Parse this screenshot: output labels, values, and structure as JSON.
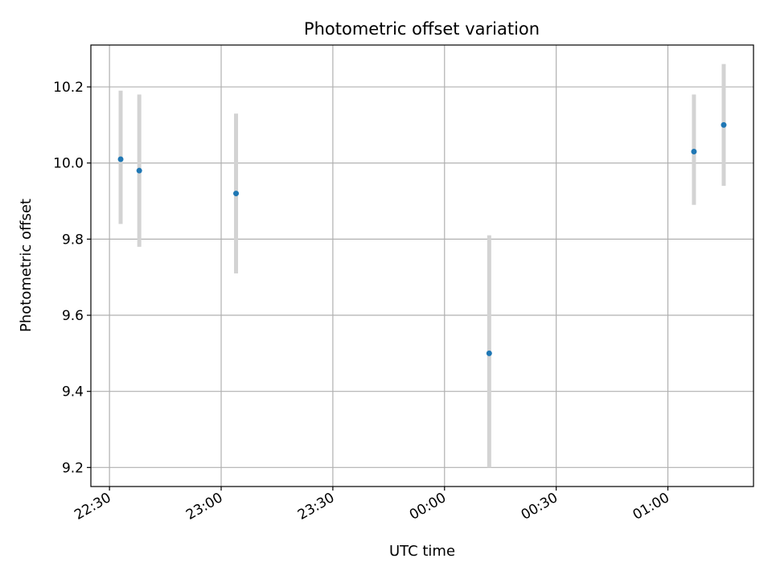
{
  "chart_data": {
    "type": "scatter",
    "title": "Photometric offset variation",
    "xlabel": "UTC time",
    "ylabel": "Photometric offset",
    "x_ticks": [
      "22:30",
      "23:00",
      "23:30",
      "00:00",
      "00:30",
      "01:00"
    ],
    "y_ticks": [
      "9.2",
      "9.4",
      "9.6",
      "9.8",
      "10.0",
      "10.2"
    ],
    "xlim": [
      "22:25",
      "01:23"
    ],
    "ylim": [
      9.15,
      10.31
    ],
    "grid": true,
    "points": [
      {
        "x": "22:33",
        "y": 10.01,
        "ylow": 9.84,
        "yhigh": 10.19
      },
      {
        "x": "22:38",
        "y": 9.98,
        "ylow": 9.78,
        "yhigh": 10.18
      },
      {
        "x": "23:04",
        "y": 9.92,
        "ylow": 9.71,
        "yhigh": 10.13
      },
      {
        "x": "00:12",
        "y": 9.5,
        "ylow": 9.2,
        "yhigh": 9.81
      },
      {
        "x": "01:07",
        "y": 10.03,
        "ylow": 9.89,
        "yhigh": 10.18
      },
      {
        "x": "01:15",
        "y": 10.1,
        "ylow": 9.94,
        "yhigh": 10.26
      }
    ],
    "colors": {
      "marker": "#1f77b4",
      "errorbar": "#d3d3d3",
      "grid": "#b0b0b0"
    }
  }
}
